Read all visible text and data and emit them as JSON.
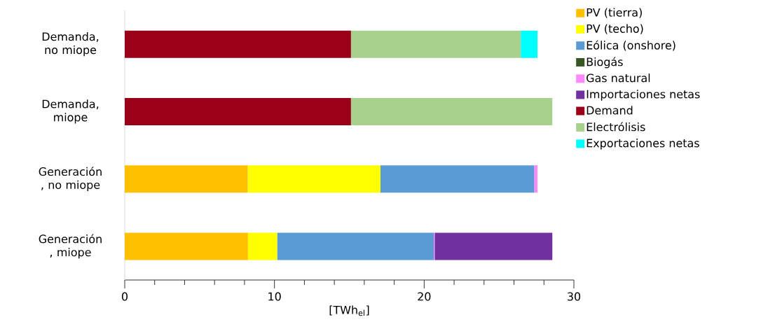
{
  "chart_data": {
    "type": "bar",
    "orientation": "horizontal",
    "stacked": true,
    "categories": [
      "Demanda, no miope",
      "Demanda, miope",
      "Generación , no miope",
      "Generación , miope"
    ],
    "xlabel": "[TWh$_{el}$]",
    "xlim": [
      0,
      30
    ],
    "xticks": [
      0,
      10,
      20,
      30
    ],
    "legend": "right",
    "grid": false,
    "series": [
      {
        "name": "PV (tierra)",
        "color": "#ffc000",
        "values": [
          0,
          0,
          8.21,
          8.23
        ]
      },
      {
        "name": "PV (techo)",
        "color": "#ffff00",
        "values": [
          0,
          0,
          8.87,
          1.95
        ]
      },
      {
        "name": "Eólica (onshore)",
        "color": "#5b9bd5",
        "values": [
          0,
          0,
          10.27,
          10.46
        ]
      },
      {
        "name": "Biogás",
        "color": "#375623",
        "values": [
          0,
          0,
          0,
          0
        ]
      },
      {
        "name": "Gas natural",
        "color": "#ff88ff",
        "values": [
          0,
          0,
          0.22,
          0.06
        ]
      },
      {
        "name": "Importaciones netas",
        "color": "#7030a0",
        "values": [
          0,
          0,
          0,
          7.86
        ]
      },
      {
        "name": "Demand",
        "color": "#9b0019",
        "values": [
          15.11,
          15.11,
          0,
          0
        ]
      },
      {
        "name": "Electrólisis",
        "color": "#a9d18e",
        "values": [
          11.34,
          13.45,
          0,
          0
        ]
      },
      {
        "name": "Exportaciones netas",
        "color": "#00ffff",
        "values": [
          1.12,
          0,
          0,
          0
        ]
      }
    ]
  }
}
